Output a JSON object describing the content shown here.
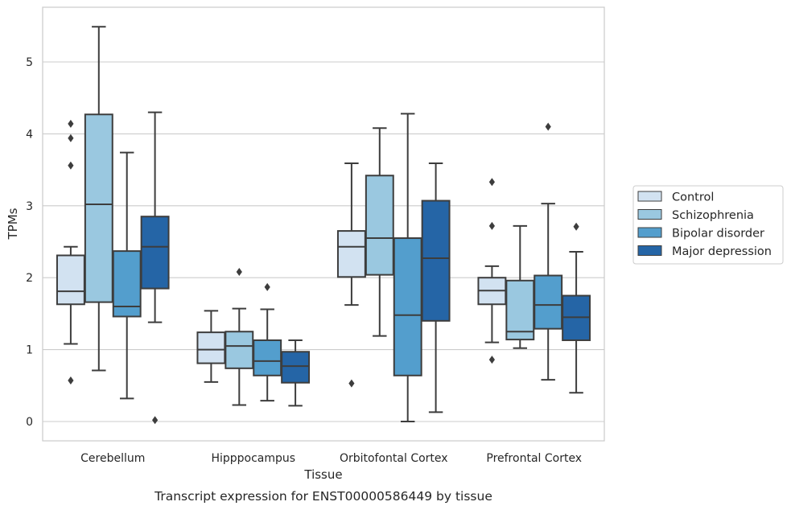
{
  "chart_data": {
    "type": "boxplot",
    "caption": "Transcript expression for ENST00000586449 by tissue",
    "xlabel": "Tissue",
    "ylabel": "TPMs",
    "ylim": [
      -0.27,
      5.78
    ],
    "yticks": [
      0,
      1,
      2,
      3,
      4,
      5
    ],
    "grid": "horizontal",
    "legend_position": "right",
    "categories": [
      "Cerebellum",
      "Hipppocampus",
      "Orbitofontal Cortex",
      "Prefrontal Cortex"
    ],
    "series": [
      {
        "name": "Control",
        "color": "#d2e2f1",
        "boxes": [
          {
            "whislo": 1.08,
            "q1": 1.63,
            "med": 1.81,
            "q3": 2.31,
            "whishi": 2.43,
            "fliers": [
              4.14,
              3.94,
              3.56,
              0.57
            ]
          },
          {
            "whislo": 0.55,
            "q1": 0.81,
            "med": 1.0,
            "q3": 1.24,
            "whishi": 1.54,
            "fliers": []
          },
          {
            "whislo": 1.62,
            "q1": 2.01,
            "med": 2.43,
            "q3": 2.65,
            "whishi": 3.59,
            "fliers": [
              0.53
            ]
          },
          {
            "whislo": 1.1,
            "q1": 1.63,
            "med": 1.82,
            "q3": 2.0,
            "whishi": 2.16,
            "fliers": [
              3.33,
              2.72,
              0.86
            ]
          }
        ]
      },
      {
        "name": "Schizophrenia",
        "color": "#9ac8e0",
        "boxes": [
          {
            "whislo": 0.71,
            "q1": 1.66,
            "med": 3.02,
            "q3": 4.27,
            "whishi": 5.49,
            "fliers": []
          },
          {
            "whislo": 0.23,
            "q1": 0.74,
            "med": 1.05,
            "q3": 1.25,
            "whishi": 1.57,
            "fliers": [
              2.08
            ]
          },
          {
            "whislo": 1.19,
            "q1": 2.04,
            "med": 2.55,
            "q3": 3.42,
            "whishi": 4.08,
            "fliers": []
          },
          {
            "whislo": 1.02,
            "q1": 1.14,
            "med": 1.25,
            "q3": 1.96,
            "whishi": 2.72,
            "fliers": []
          }
        ]
      },
      {
        "name": "Bipolar disorder",
        "color": "#539ecd",
        "boxes": [
          {
            "whislo": 0.32,
            "q1": 1.46,
            "med": 1.6,
            "q3": 2.37,
            "whishi": 3.74,
            "fliers": []
          },
          {
            "whislo": 0.29,
            "q1": 0.64,
            "med": 0.84,
            "q3": 1.13,
            "whishi": 1.56,
            "fliers": [
              1.87
            ]
          },
          {
            "whislo": 0.0,
            "q1": 0.64,
            "med": 1.48,
            "q3": 2.55,
            "whishi": 4.28,
            "fliers": []
          },
          {
            "whislo": 0.58,
            "q1": 1.29,
            "med": 1.62,
            "q3": 2.03,
            "whishi": 3.03,
            "fliers": [
              4.1
            ]
          }
        ]
      },
      {
        "name": "Major depression",
        "color": "#2565a6",
        "boxes": [
          {
            "whislo": 1.38,
            "q1": 1.85,
            "med": 2.43,
            "q3": 2.85,
            "whishi": 4.3,
            "fliers": [
              0.02
            ]
          },
          {
            "whislo": 0.22,
            "q1": 0.54,
            "med": 0.77,
            "q3": 0.97,
            "whishi": 1.13,
            "fliers": []
          },
          {
            "whislo": 0.13,
            "q1": 1.4,
            "med": 2.27,
            "q3": 3.07,
            "whishi": 3.59,
            "fliers": []
          },
          {
            "whislo": 0.4,
            "q1": 1.13,
            "med": 1.45,
            "q3": 1.75,
            "whishi": 2.36,
            "fliers": [
              2.71
            ]
          }
        ]
      }
    ]
  }
}
